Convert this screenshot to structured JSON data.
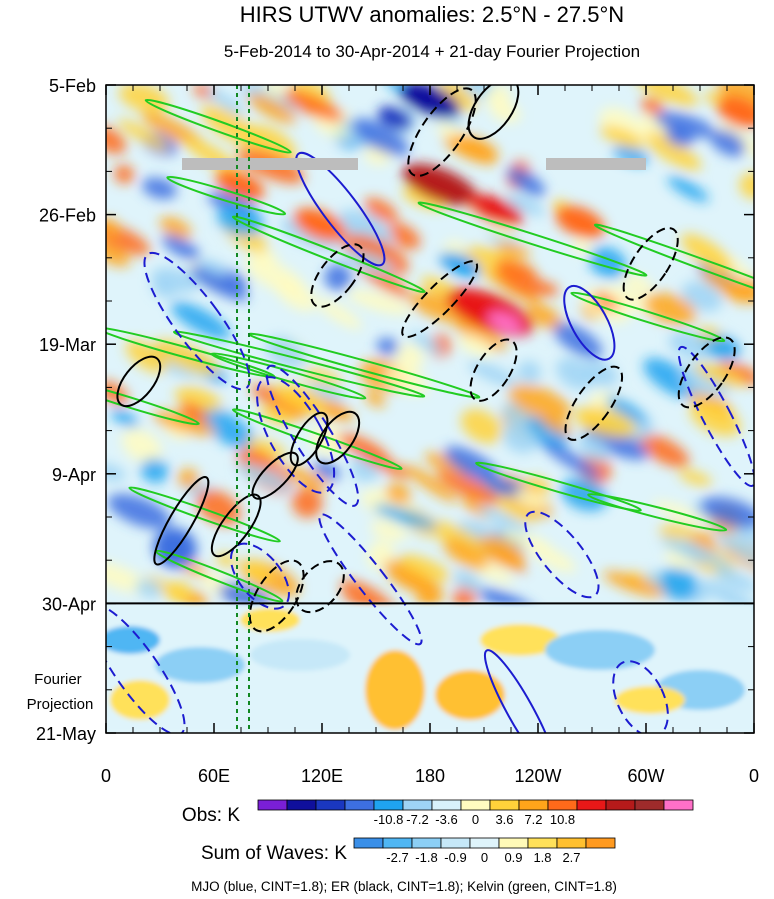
{
  "chart_data": {
    "type": "heatmap",
    "title": "HIRS UTWV anomalies: 2.5°N - 27.5°N",
    "subtitle": "5-Feb-2014 to 30-Apr-2014 + 21-day Fourier Projection",
    "x_ticks": [
      "0",
      "60E",
      "120E",
      "180",
      "120W",
      "60W",
      "0"
    ],
    "x_tick_values": [
      0,
      60,
      120,
      180,
      240,
      300,
      360
    ],
    "xlim": [
      0,
      360
    ],
    "y_ticks": [
      "5-Feb",
      "26-Feb",
      "19-Mar",
      "9-Apr",
      "30-Apr",
      "21-May"
    ],
    "y_tick_days": [
      0,
      21,
      42,
      63,
      84,
      105
    ],
    "ylim": [
      0,
      105
    ],
    "observation_end_day": 84,
    "projection_label": "Fourier Projection",
    "obs_colorbar": {
      "label": "Obs: K",
      "tick_labels": [
        "-10.8",
        "-7.2",
        "-3.6",
        "0",
        "3.6",
        "7.2",
        "10.8"
      ],
      "colors": [
        "#7a1fd6",
        "#0f0f9c",
        "#1a37c0",
        "#3d6fe0",
        "#1fa3f0",
        "#9ed3f5",
        "#d8f2fb",
        "#fffcc0",
        "#ffd23a",
        "#ffa41a",
        "#ff6a1a",
        "#e81818",
        "#b51a1a",
        "#9e2b2b",
        "#ff70c8"
      ]
    },
    "waves_colorbar": {
      "label": "Sum of Waves: K",
      "tick_labels": [
        "-2.7",
        "-1.8",
        "-0.9",
        "0",
        "0.9",
        "1.8",
        "2.7"
      ],
      "colors": [
        "#3a8fe8",
        "#4fb6f3",
        "#8ccff5",
        "#c6e8f8",
        "#dff4fb",
        "#fffab8",
        "#ffe15a",
        "#ffc030",
        "#ff9a20"
      ]
    },
    "contour_legend": "MJO (blue, CINT=1.8); ER (black, CINT=1.8); Kelvin (green, CINT=1.8)",
    "series": [
      {
        "name": "MJO",
        "color": "#1c1cd0"
      },
      {
        "name": "ER",
        "color": "#000000"
      },
      {
        "name": "Kelvin",
        "color": "#22cc22"
      }
    ],
    "grid": false
  }
}
